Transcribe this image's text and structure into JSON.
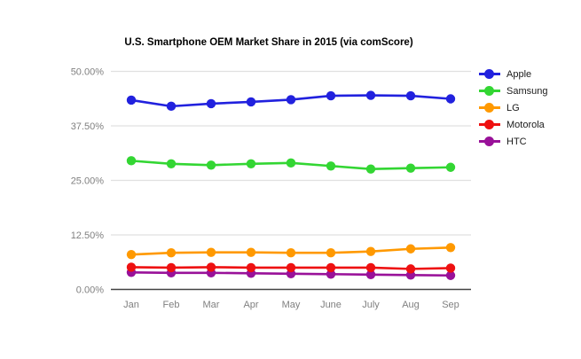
{
  "title": "U.S. Smartphone OEM Market Share in 2015 (via comScore)",
  "chart_data": {
    "type": "line",
    "categories": [
      "Jan",
      "Feb",
      "Mar",
      "Apr",
      "May",
      "June",
      "July",
      "Aug",
      "Sep"
    ],
    "series": [
      {
        "name": "Apple",
        "color": "#2121de",
        "values": [
          43.4,
          42.0,
          42.6,
          43.0,
          43.5,
          44.4,
          44.5,
          44.4,
          43.7
        ]
      },
      {
        "name": "Samsung",
        "color": "#33d633",
        "values": [
          29.5,
          28.8,
          28.5,
          28.8,
          29.0,
          28.3,
          27.6,
          27.8,
          28.0
        ]
      },
      {
        "name": "LG",
        "color": "#ff9900",
        "values": [
          8.0,
          8.4,
          8.5,
          8.5,
          8.4,
          8.4,
          8.7,
          9.3,
          9.6
        ]
      },
      {
        "name": "Motorola",
        "color": "#ee1111",
        "values": [
          5.1,
          5.0,
          5.1,
          5.0,
          5.0,
          5.0,
          5.0,
          4.7,
          4.9
        ]
      },
      {
        "name": "HTC",
        "color": "#991199",
        "values": [
          3.9,
          3.8,
          3.8,
          3.7,
          3.6,
          3.5,
          3.4,
          3.3,
          3.2
        ]
      }
    ],
    "y_ticks": [
      {
        "label": "0.00%",
        "value": 0
      },
      {
        "label": "12.50%",
        "value": 12.5
      },
      {
        "label": "25.00%",
        "value": 25
      },
      {
        "label": "37.50%",
        "value": 37.5
      },
      {
        "label": "50.00%",
        "value": 50
      }
    ],
    "ylim": [
      0,
      50
    ],
    "grid": true,
    "legend_position": "right"
  },
  "colors": {
    "background": "#ffffff",
    "gridline": "#e0e0e0",
    "axis": "#424242",
    "tick_text": "#808080",
    "title_text": "#000000",
    "legend_text": "#1a1a1a"
  }
}
